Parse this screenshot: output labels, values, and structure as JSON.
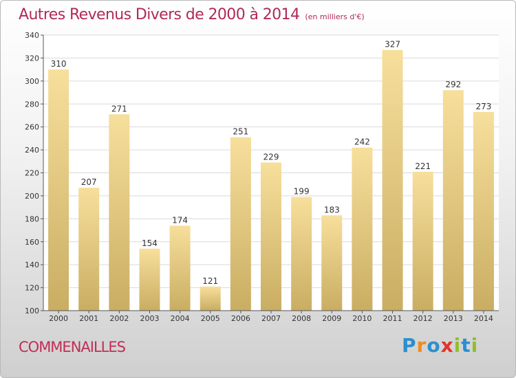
{
  "header": {
    "title": "Autres Revenus Divers de 2000 à 2014",
    "subtitle": "(en milliers d'€)"
  },
  "footer": {
    "commune": "COMMENAILLES",
    "logo_letters": [
      "P",
      "r",
      "o",
      "x",
      "i",
      "t",
      "i"
    ]
  },
  "colors": {
    "title": "#b12a55",
    "bar_light": "#f7df9c",
    "bar_dark": "#c9ad62",
    "grid": "#d9d9d9",
    "logo": [
      "#2b8fce",
      "#f08a1d",
      "#2b8fce",
      "#e2322a",
      "#8fbf2f",
      "#2b8fce",
      "#8fbf2f"
    ]
  },
  "chart_data": {
    "type": "bar",
    "categories": [
      "2000",
      "2001",
      "2002",
      "2003",
      "2004",
      "2005",
      "2006",
      "2007",
      "2008",
      "2009",
      "2010",
      "2011",
      "2012",
      "2013",
      "2014"
    ],
    "values": [
      310,
      207,
      271,
      154,
      174,
      121,
      251,
      229,
      199,
      183,
      242,
      327,
      221,
      292,
      273
    ],
    "ylim": [
      100,
      340
    ],
    "yticks": [
      100,
      120,
      140,
      160,
      180,
      200,
      220,
      240,
      260,
      280,
      300,
      320,
      340
    ],
    "grid": true,
    "data_labels": true,
    "xlabel": "",
    "ylabel": ""
  }
}
